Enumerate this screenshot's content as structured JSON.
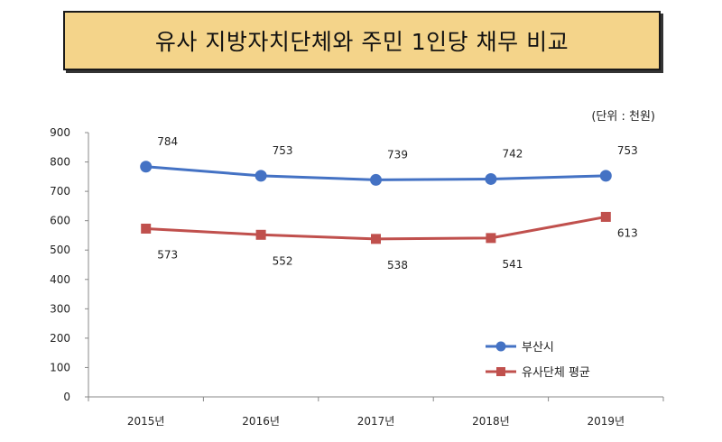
{
  "title": "유사 지방자치단체와 주민 1인당 채무 비교",
  "unit_note": "(단위 : 천원)",
  "colors": {
    "series_1": "#4472c4",
    "series_2": "#c0504d",
    "title_bg": "#f4d48a"
  },
  "chart_data": {
    "type": "line",
    "title": "유사 지방자치단체와 주민 1인당 채무 비교",
    "categories": [
      "2015년",
      "2016년",
      "2017년",
      "2018년",
      "2019년"
    ],
    "series": [
      {
        "name": "부산시",
        "values": [
          784,
          753,
          739,
          742,
          753
        ],
        "color": "#4472c4",
        "marker": "circle"
      },
      {
        "name": "유사단체 평균",
        "values": [
          573,
          552,
          538,
          541,
          613
        ],
        "color": "#c0504d",
        "marker": "square"
      }
    ],
    "ylim": [
      0,
      900
    ],
    "yticks": [
      "0",
      "100",
      "200",
      "300",
      "400",
      "500",
      "600",
      "700",
      "800",
      "900"
    ],
    "grid": false,
    "legend": "bottom-right"
  }
}
